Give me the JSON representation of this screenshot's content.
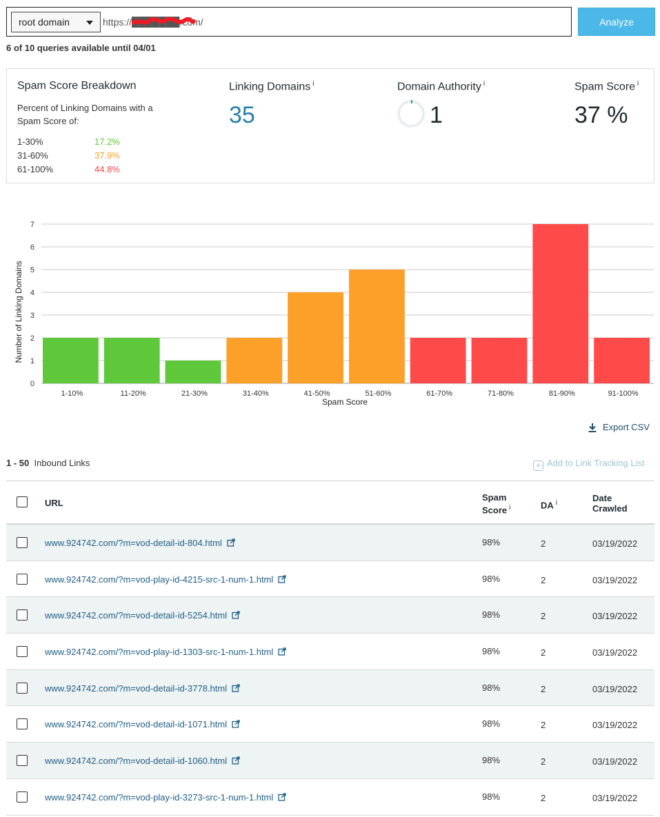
{
  "search": {
    "scope_selected": "root domain",
    "url_value": "https://███████.com/",
    "analyze_label": "Analyze",
    "quota_text": "6 of 10 queries available until 04/01"
  },
  "summary": {
    "breakdown_title": "Spam Score Breakdown",
    "breakdown_desc": "Percent of Linking Domains with a Spam Score of:",
    "breakdown_rows": [
      {
        "range": "1-30%",
        "pct": "17.2%",
        "color": "#5fc83a"
      },
      {
        "range": "31-60%",
        "pct": "37.9%",
        "color": "#f5a02a"
      },
      {
        "range": "61-100%",
        "pct": "44.8%",
        "color": "#f04a4a"
      }
    ],
    "linking_domains_title": "Linking Domains",
    "linking_domains_value": "35",
    "domain_authority_title": "Domain Authority",
    "domain_authority_value": "1",
    "spam_score_title": "Spam Score",
    "spam_score_value": "37 %",
    "info_icon_char": "i"
  },
  "chart_data": {
    "type": "bar",
    "categories": [
      "1-10%",
      "11-20%",
      "21-30%",
      "31-40%",
      "41-50%",
      "51-60%",
      "61-70%",
      "71-80%",
      "81-90%",
      "91-100%"
    ],
    "values": [
      2,
      2,
      1,
      2,
      4,
      5,
      2,
      2,
      7,
      2
    ],
    "bar_colors": [
      "#5fc83a",
      "#5fc83a",
      "#5fc83a",
      "#fca02a",
      "#fca02a",
      "#fca02a",
      "#ff4a4a",
      "#ff4a4a",
      "#ff4a4a",
      "#ff4a4a"
    ],
    "xlabel": "Spam Score",
    "ylabel": "Number of Linking Domains",
    "ylim": [
      0,
      7
    ],
    "yticks": [
      0,
      1,
      2,
      3,
      4,
      5,
      6,
      7
    ],
    "grid": true
  },
  "export_label": "Export CSV",
  "links": {
    "range": "1 - 50",
    "label": "Inbound Links",
    "add_tracking_label": "Add to Link Tracking List"
  },
  "table": {
    "headers": {
      "url": "URL",
      "spam_line1": "Spam",
      "spam_line2": "Score",
      "da": "DA",
      "date_line1": "Date",
      "date_line2": "Crawled"
    },
    "rows": [
      {
        "url": "www.924742.com/?m=vod-detail-id-804.html",
        "spam": "98%",
        "da": "2",
        "date": "03/19/2022"
      },
      {
        "url": "www.924742.com/?m=vod-play-id-4215-src-1-num-1.html",
        "spam": "98%",
        "da": "2",
        "date": "03/19/2022"
      },
      {
        "url": "www.924742.com/?m=vod-detail-id-5254.html",
        "spam": "98%",
        "da": "2",
        "date": "03/19/2022"
      },
      {
        "url": "www.924742.com/?m=vod-play-id-1303-src-1-num-1.html",
        "spam": "98%",
        "da": "2",
        "date": "03/19/2022"
      },
      {
        "url": "www.924742.com/?m=vod-detail-id-3778.html",
        "spam": "98%",
        "da": "2",
        "date": "03/19/2022"
      },
      {
        "url": "www.924742.com/?m=vod-detail-id-1071.html",
        "spam": "98%",
        "da": "2",
        "date": "03/19/2022"
      },
      {
        "url": "www.924742.com/?m=vod-detail-id-1060.html",
        "spam": "98%",
        "da": "2",
        "date": "03/19/2022"
      },
      {
        "url": "www.924742.com/?m=vod-play-id-3273-src-1-num-1.html",
        "spam": "98%",
        "da": "2",
        "date": "03/19/2022"
      }
    ]
  }
}
